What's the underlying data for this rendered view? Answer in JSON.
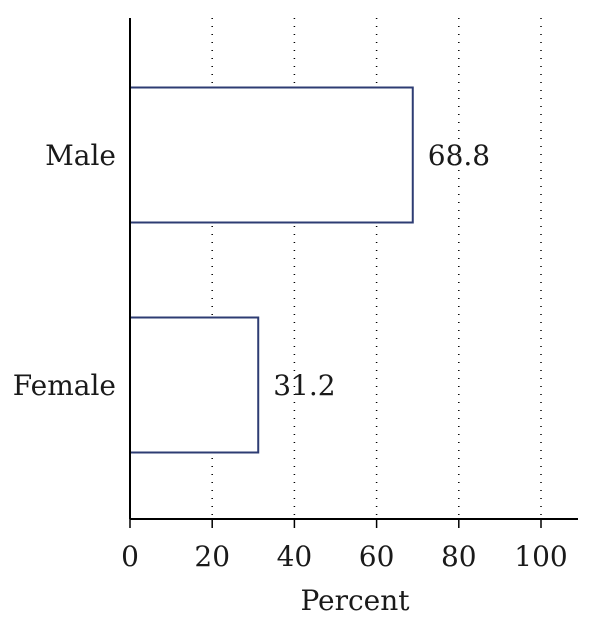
{
  "chart_data": {
    "type": "bar",
    "orientation": "horizontal",
    "categories": [
      "Male",
      "Female"
    ],
    "values": [
      68.8,
      31.2
    ],
    "value_labels": [
      "68.8",
      "31.2"
    ],
    "title": "",
    "xlabel": "Percent",
    "ylabel": "",
    "xlim": [
      0,
      100
    ],
    "xticks": [
      "0",
      "20",
      "40",
      "60",
      "80",
      "100"
    ],
    "grid": "vertical-dotted",
    "legend": "none",
    "bar_fill": "#ffffff",
    "bar_stroke": "#2e3c73"
  }
}
